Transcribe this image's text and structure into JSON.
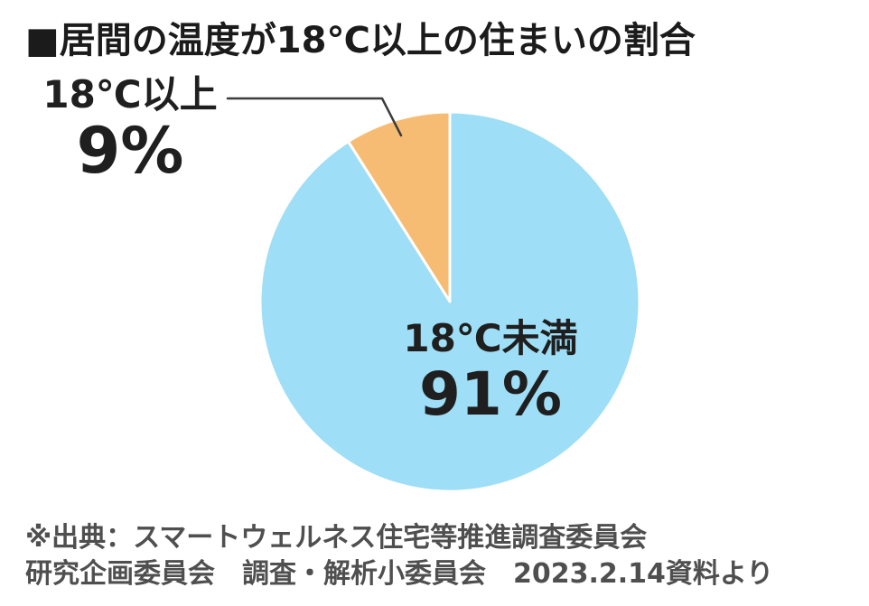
{
  "title": "■居間の温度が18℃以上の住まいの割合",
  "chart_data": {
    "type": "pie",
    "title": "居間の温度が18℃以上の住まいの割合",
    "slices": [
      {
        "label": "18℃以上",
        "value": 9,
        "display": "9%",
        "color": "#f7bc74"
      },
      {
        "label": "18℃未満",
        "value": 91,
        "display": "91%",
        "color": "#9edef6"
      }
    ],
    "start_angle_deg": -32.4,
    "legend_position": "none",
    "label_layout": "small slice labeled by external callout at upper-left; large slice labeled inside"
  },
  "source": {
    "line1": "※出典：スマートウェルネス住宅等推進調査委員会",
    "line2": "研究企画委員会　調査・解析小委員会　2023.2.14資料より"
  },
  "colors": {
    "orange_slice": "#f7bc74",
    "blue_slice": "#9edef6",
    "slice_separator": "#ffffff",
    "leader_line": "#3c3c3c",
    "title_text": "#1b1b1b",
    "source_text": "#4f4f4f"
  }
}
